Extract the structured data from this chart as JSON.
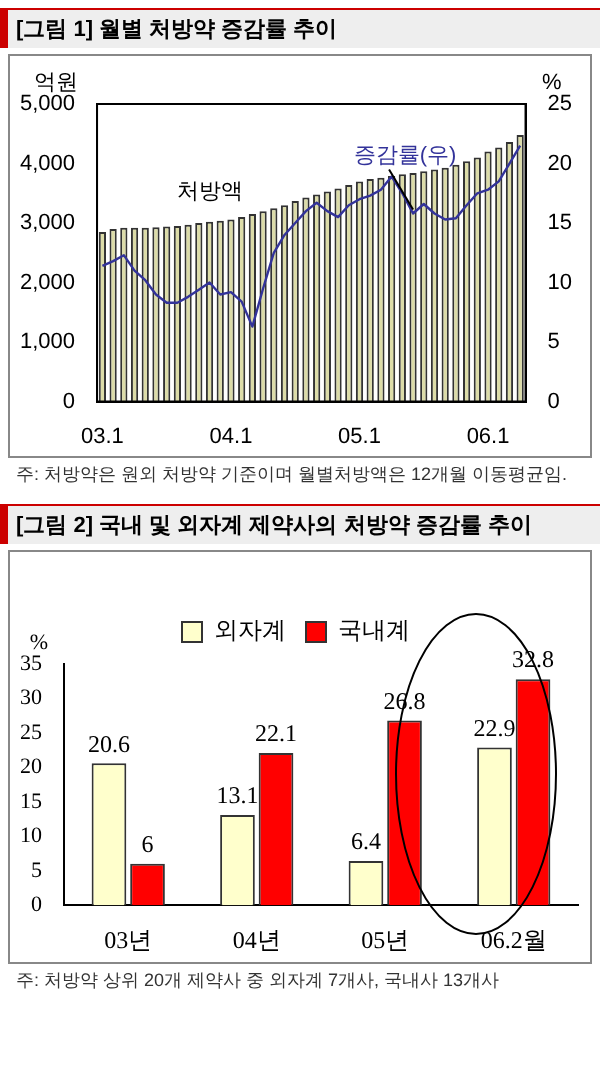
{
  "chart_data": [
    {
      "type": "bar",
      "title": "[그림 1] 월별 처방약 증감률 추이",
      "ylabel": "억원",
      "y2label": "%",
      "categories": [
        "03.1",
        null,
        null,
        null,
        null,
        null,
        null,
        null,
        null,
        null,
        null,
        null,
        "04.1",
        null,
        null,
        null,
        null,
        null,
        null,
        null,
        null,
        null,
        null,
        null,
        "05.1",
        null,
        null,
        null,
        null,
        null,
        null,
        null,
        null,
        null,
        null,
        null,
        "06.1",
        null,
        null,
        null
      ],
      "series": [
        {
          "name": "처방액",
          "color": "#dcdca8",
          "values": [
            2850,
            2900,
            2920,
            2920,
            2920,
            2930,
            2940,
            2950,
            2970,
            3000,
            3020,
            3040,
            3060,
            3100,
            3150,
            3200,
            3250,
            3300,
            3370,
            3430,
            3480,
            3530,
            3580,
            3640,
            3700,
            3740,
            3760,
            3790,
            3820,
            3840,
            3870,
            3900,
            3930,
            3980,
            4040,
            4100,
            4200,
            4270,
            4360,
            4480
          ]
        },
        {
          "name": "증감률(우)",
          "type": "line",
          "axis": "y2",
          "color": "#33339a",
          "values": [
            11.4,
            11.8,
            12.3,
            11,
            10.2,
            9,
            8.3,
            8.3,
            8.8,
            9.4,
            10,
            9,
            9.2,
            8.4,
            6.3,
            9.5,
            12.5,
            14,
            15,
            16,
            16.7,
            16,
            15.5,
            16.5,
            17,
            17.3,
            17.8,
            18.9,
            17.5,
            15.8,
            16.6,
            15.8,
            15.3,
            15.4,
            16.5,
            17.5,
            17.8,
            18.5,
            20,
            21.5
          ]
        }
      ],
      "ylim": [
        0,
        5000
      ],
      "yticks": [
        {
          "value": 0,
          "label": "0"
        },
        {
          "value": 1000,
          "label": "1,000"
        },
        {
          "value": 2000,
          "label": "2,000"
        },
        {
          "value": 3000,
          "label": "3,000"
        },
        {
          "value": 4000,
          "label": "4,000"
        },
        {
          "value": 5000,
          "label": "5,000"
        }
      ],
      "y2lim": [
        0,
        25
      ],
      "y2ticks": [
        0,
        5,
        10,
        15,
        20,
        25
      ],
      "grid": false,
      "legend": false,
      "marker": "none",
      "annotations": [
        "주: 처방약은 원외 처방약 기준이며 월별처방액은 12개월 이동평균임."
      ]
    },
    {
      "type": "bar",
      "title": "[그림 2] 국내 및 외자계 제약사의 처방약 증감률 추이",
      "ylabel": "%",
      "categories": [
        "03년",
        "04년",
        "05년",
        "06.2월"
      ],
      "series": [
        {
          "name": "외자계",
          "color": "#ffffcc",
          "values": [
            20.6,
            13.1,
            6.4,
            22.9
          ]
        },
        {
          "name": "국내계",
          "color": "#ff0000",
          "values": [
            6,
            22.1,
            26.8,
            32.8
          ]
        }
      ],
      "ylim": [
        0,
        35
      ],
      "yticks": [
        0,
        5,
        10,
        15,
        20,
        25,
        30,
        35
      ],
      "grid": false,
      "legend": "top",
      "data_labels": true,
      "annotations": [
        "주: 처방약 상위 20개 제약사 중 외자계 7개사, 국내사 13개사"
      ]
    }
  ]
}
